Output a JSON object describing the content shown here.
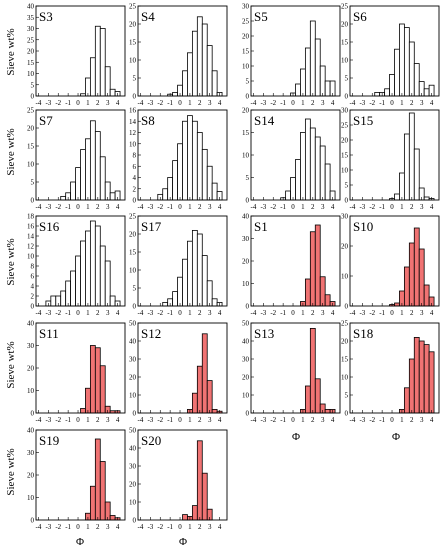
{
  "y_axis_title": "Sieve wt%",
  "x_axis_title": "Φ",
  "colors": {
    "white_bar": "#ffffff",
    "red_bar": "#f07373",
    "stroke": "#000000"
  },
  "chart_data": [
    {
      "label": "S3",
      "type": "bar",
      "fill": "white",
      "x": [
        -4,
        -3.5,
        -3,
        -2.5,
        -2,
        -1.5,
        -1,
        -0.5,
        0,
        0.5,
        1,
        1.5,
        2,
        2.5,
        3,
        3.5,
        4
      ],
      "values": [
        0,
        0,
        0,
        0,
        0,
        0,
        0,
        0,
        0,
        1,
        8,
        17,
        31,
        30,
        13,
        3,
        2
      ],
      "ylim": [
        0,
        40
      ],
      "yticks": [
        0,
        5,
        10,
        15,
        20,
        25,
        30,
        35,
        40
      ]
    },
    {
      "label": "S4",
      "type": "bar",
      "fill": "white",
      "x": [
        -4,
        -3.5,
        -3,
        -2.5,
        -2,
        -1.5,
        -1,
        -0.5,
        0,
        0.5,
        1,
        1.5,
        2,
        2.5,
        3,
        3.5,
        4
      ],
      "values": [
        0,
        0,
        0,
        0,
        0,
        0,
        0.5,
        1,
        3,
        7,
        12,
        18,
        22,
        20,
        14,
        7,
        1
      ],
      "ylim": [
        0,
        25
      ],
      "yticks": [
        0,
        5,
        10,
        15,
        20,
        25
      ]
    },
    {
      "label": "S5",
      "type": "bar",
      "fill": "white",
      "x": [
        -4,
        -3.5,
        -3,
        -2.5,
        -2,
        -1.5,
        -1,
        -0.5,
        0,
        0.5,
        1,
        1.5,
        2,
        2.5,
        3,
        3.5,
        4
      ],
      "values": [
        0,
        0,
        0,
        0,
        0,
        0,
        0,
        0,
        1,
        4,
        9,
        16,
        25,
        19,
        10,
        5,
        5
      ],
      "ylim": [
        0,
        30
      ],
      "yticks": [
        0,
        5,
        10,
        15,
        20,
        25,
        30
      ]
    },
    {
      "label": "S6",
      "type": "bar",
      "fill": "white",
      "x": [
        -4,
        -3.5,
        -3,
        -2.5,
        -2,
        -1.5,
        -1,
        -0.5,
        0,
        0.5,
        1,
        1.5,
        2,
        2.5,
        3,
        3.5,
        4
      ],
      "values": [
        0,
        0,
        0,
        0,
        0,
        1,
        1,
        2,
        6,
        13,
        20,
        19,
        15,
        9,
        4,
        2,
        3
      ],
      "ylim": [
        0,
        25
      ],
      "yticks": [
        0,
        5,
        10,
        15,
        20,
        25
      ]
    },
    {
      "label": "S7",
      "type": "bar",
      "fill": "white",
      "x": [
        -4,
        -3.5,
        -3,
        -2.5,
        -2,
        -1.5,
        -1,
        -0.5,
        0,
        0.5,
        1,
        1.5,
        2,
        2.5,
        3,
        3.5,
        4
      ],
      "values": [
        0,
        0,
        0,
        0,
        0,
        1,
        2,
        5,
        9,
        14,
        17,
        22,
        19,
        12,
        5,
        2,
        2.5
      ],
      "ylim": [
        0,
        25
      ],
      "yticks": [
        0,
        5,
        10,
        15,
        20,
        25
      ]
    },
    {
      "label": "S8",
      "type": "bar",
      "fill": "white",
      "x": [
        -4,
        -3.5,
        -3,
        -2.5,
        -2,
        -1.5,
        -1,
        -0.5,
        0,
        0.5,
        1,
        1.5,
        2,
        2.5,
        3,
        3.5,
        4
      ],
      "values": [
        0,
        0,
        0,
        0,
        1,
        2,
        4,
        7,
        10,
        14,
        15,
        14,
        12,
        9,
        6,
        3,
        1.5
      ],
      "ylim": [
        0,
        16
      ],
      "yticks": [
        0,
        2,
        4,
        6,
        8,
        10,
        12,
        14,
        16
      ]
    },
    {
      "label": "S14",
      "type": "bar",
      "fill": "white",
      "x": [
        -4,
        -3.5,
        -3,
        -2.5,
        -2,
        -1.5,
        -1,
        -0.5,
        0,
        0.5,
        1,
        1.5,
        2,
        2.5,
        3,
        3.5,
        4
      ],
      "values": [
        0,
        0,
        0,
        0,
        0,
        0,
        0.5,
        2,
        5,
        9,
        15,
        18,
        16,
        14,
        12,
        8,
        2
      ],
      "ylim": [
        0,
        20
      ],
      "yticks": [
        0,
        5,
        10,
        15,
        20
      ]
    },
    {
      "label": "S15",
      "type": "bar",
      "fill": "white",
      "x": [
        -4,
        -3.5,
        -3,
        -2.5,
        -2,
        -1.5,
        -1,
        -0.5,
        0,
        0.5,
        1,
        1.5,
        2,
        2.5,
        3,
        3.5,
        4
      ],
      "values": [
        0,
        0,
        0,
        0,
        0,
        0,
        0,
        0,
        0.5,
        2,
        9,
        22,
        29,
        17,
        4,
        1,
        0.5
      ],
      "ylim": [
        0,
        30
      ],
      "yticks": [
        0,
        5,
        10,
        15,
        20,
        25,
        30
      ]
    },
    {
      "label": "S16",
      "type": "bar",
      "fill": "white",
      "x": [
        -4,
        -3.5,
        -3,
        -2.5,
        -2,
        -1.5,
        -1,
        -0.5,
        0,
        0.5,
        1,
        1.5,
        2,
        2.5,
        3,
        3.5,
        4
      ],
      "values": [
        0,
        0,
        1,
        2,
        2,
        3,
        5,
        7,
        10,
        13,
        15,
        17,
        16,
        12,
        9,
        2,
        1
      ],
      "ylim": [
        0,
        18
      ],
      "yticks": [
        0,
        2,
        4,
        6,
        8,
        10,
        12,
        14,
        16,
        18
      ]
    },
    {
      "label": "S17",
      "type": "bar",
      "fill": "white",
      "x": [
        -4,
        -3.5,
        -3,
        -2.5,
        -2,
        -1.5,
        -1,
        -0.5,
        0,
        0.5,
        1,
        1.5,
        2,
        2.5,
        3,
        3.5,
        4
      ],
      "values": [
        0,
        0,
        0,
        0,
        0,
        1,
        2,
        4,
        8,
        13,
        18,
        21,
        20,
        14,
        7,
        2,
        1
      ],
      "ylim": [
        0,
        25
      ],
      "yticks": [
        0,
        5,
        10,
        15,
        20,
        25
      ]
    },
    {
      "label": "S1",
      "type": "bar",
      "fill": "red",
      "x": [
        -4,
        -3.5,
        -3,
        -2.5,
        -2,
        -1.5,
        -1,
        -0.5,
        0,
        0.5,
        1,
        1.5,
        2,
        2.5,
        3,
        3.5,
        4
      ],
      "values": [
        0,
        0,
        0,
        0,
        0,
        0,
        0,
        0,
        0,
        0,
        2,
        12,
        33,
        36,
        13,
        5,
        2
      ],
      "ylim": [
        0,
        40
      ],
      "yticks": [
        0,
        10,
        20,
        30,
        40
      ]
    },
    {
      "label": "S10",
      "type": "bar",
      "fill": "red",
      "x": [
        -4,
        -3.5,
        -3,
        -2.5,
        -2,
        -1.5,
        -1,
        -0.5,
        0,
        0.5,
        1,
        1.5,
        2,
        2.5,
        3,
        3.5,
        4
      ],
      "values": [
        0,
        0,
        0,
        0,
        0,
        0,
        0,
        0,
        0.5,
        1,
        5,
        13,
        21,
        26,
        19,
        7,
        3
      ],
      "ylim": [
        0,
        30
      ],
      "yticks": [
        0,
        10,
        20,
        30
      ]
    },
    {
      "label": "S11",
      "type": "bar",
      "fill": "red",
      "x": [
        -4,
        -3.5,
        -3,
        -2.5,
        -2,
        -1.5,
        -1,
        -0.5,
        0,
        0.5,
        1,
        1.5,
        2,
        2.5,
        3,
        3.5,
        4
      ],
      "values": [
        0,
        0,
        0,
        0,
        0,
        0,
        0,
        0,
        0,
        2,
        11,
        30,
        29,
        21,
        3,
        1,
        1
      ],
      "ylim": [
        0,
        40
      ],
      "yticks": [
        0,
        10,
        20,
        30,
        40
      ]
    },
    {
      "label": "S12",
      "type": "bar",
      "fill": "red",
      "x": [
        -4,
        -3.5,
        -3,
        -2.5,
        -2,
        -1.5,
        -1,
        -0.5,
        0,
        0.5,
        1,
        1.5,
        2,
        2.5,
        3,
        3.5,
        4
      ],
      "values": [
        0,
        0,
        0,
        0,
        0,
        0,
        0,
        0,
        0,
        0,
        2,
        11,
        26,
        44,
        18,
        2,
        1
      ],
      "ylim": [
        0,
        50
      ],
      "yticks": [
        0,
        10,
        20,
        30,
        40,
        50
      ]
    },
    {
      "label": "S13",
      "type": "bar",
      "fill": "red",
      "x": [
        -4,
        -3.5,
        -3,
        -2.5,
        -2,
        -1.5,
        -1,
        -0.5,
        0,
        0.5,
        1,
        1.5,
        2,
        2.5,
        3,
        3.5,
        4
      ],
      "values": [
        0,
        0,
        0,
        0,
        0,
        0,
        0,
        0,
        0,
        0,
        2,
        15,
        47,
        19,
        5,
        2,
        2
      ],
      "ylim": [
        0,
        50
      ],
      "yticks": [
        0,
        10,
        20,
        30,
        40,
        50
      ]
    },
    {
      "label": "S18",
      "type": "bar",
      "fill": "red",
      "x": [
        -4,
        -3.5,
        -3,
        -2.5,
        -2,
        -1.5,
        -1,
        -0.5,
        0,
        0.5,
        1,
        1.5,
        2,
        2.5,
        3,
        3.5,
        4
      ],
      "values": [
        0,
        0,
        0,
        0,
        0,
        0,
        0,
        0,
        0,
        0,
        1,
        7,
        15,
        21,
        20,
        19,
        17
      ],
      "ylim": [
        0,
        25
      ],
      "yticks": [
        0,
        5,
        10,
        15,
        20,
        25
      ]
    },
    {
      "label": "S19",
      "type": "bar",
      "fill": "red",
      "x": [
        -4,
        -3.5,
        -3,
        -2.5,
        -2,
        -1.5,
        -1,
        -0.5,
        0,
        0.5,
        1,
        1.5,
        2,
        2.5,
        3,
        3.5,
        4
      ],
      "values": [
        0,
        0,
        0,
        0,
        0,
        0,
        0,
        0,
        0,
        0,
        3,
        15,
        36,
        26,
        8,
        2,
        1
      ],
      "ylim": [
        0,
        40
      ],
      "yticks": [
        0,
        10,
        20,
        30,
        40
      ]
    },
    {
      "label": "S20",
      "type": "bar",
      "fill": "red",
      "x": [
        -4,
        -3.5,
        -3,
        -2.5,
        -2,
        -1.5,
        -1,
        -0.5,
        0,
        0.5,
        1,
        1.5,
        2,
        2.5,
        3,
        3.5,
        4
      ],
      "values": [
        0,
        0,
        0,
        0,
        0,
        0,
        0,
        0,
        0,
        3,
        2,
        8,
        44,
        26,
        6,
        0,
        0
      ],
      "ylim": [
        0,
        50
      ],
      "yticks": [
        0,
        10,
        20,
        30,
        40,
        50
      ]
    }
  ]
}
